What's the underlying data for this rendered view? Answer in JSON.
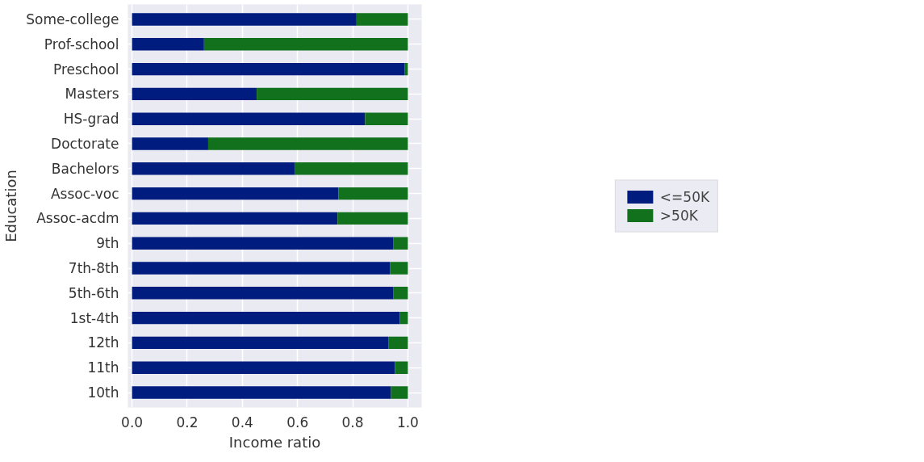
{
  "chart_data": {
    "type": "bar",
    "orientation": "horizontal",
    "stacked": true,
    "xlabel": "Income ratio",
    "ylabel": "Education",
    "categories": [
      "Some-college",
      "Prof-school",
      "Preschool",
      "Masters",
      "HS-grad",
      "Doctorate",
      "Bachelors",
      "Assoc-voc",
      "Assoc-acdm",
      "9th",
      "7th-8th",
      "5th-6th",
      "1st-4th",
      "12th",
      "11th",
      "10th"
    ],
    "series": [
      {
        "name": "<=50K",
        "color": "#001c7f",
        "values": [
          0.814,
          0.261,
          0.989,
          0.452,
          0.845,
          0.276,
          0.589,
          0.748,
          0.745,
          0.948,
          0.936,
          0.948,
          0.971,
          0.929,
          0.953,
          0.939
        ]
      },
      {
        "name": ">50K",
        "color": "#12711c",
        "values": [
          0.186,
          0.739,
          0.011,
          0.548,
          0.155,
          0.724,
          0.411,
          0.252,
          0.255,
          0.052,
          0.064,
          0.052,
          0.029,
          0.071,
          0.047,
          0.061
        ]
      }
    ],
    "xlim": [
      -0.015,
      1.05
    ],
    "xticks": [
      {
        "value": 0,
        "label": "0.0"
      },
      {
        "value": 0.2,
        "label": "0.2"
      },
      {
        "value": 0.4,
        "label": "0.4"
      },
      {
        "value": 0.6,
        "label": "0.6"
      },
      {
        "value": 0.8,
        "label": "0.8"
      },
      {
        "value": 1,
        "label": "1.0"
      }
    ],
    "grid": true,
    "legend": "right"
  }
}
